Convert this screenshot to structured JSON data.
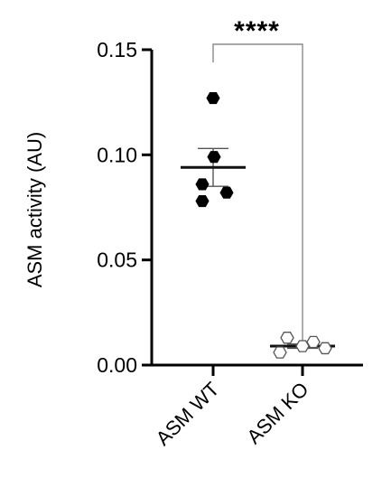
{
  "chart_data": {
    "type": "scatter",
    "ylabel": "ASM activity (AU)",
    "xlabel": "",
    "ylim": [
      0,
      0.15
    ],
    "yticks": [
      "0.00",
      "0.05",
      "0.10",
      "0.15"
    ],
    "categories": [
      "ASM WT",
      "ASM KO"
    ],
    "groups": [
      {
        "category": "ASM WT",
        "marker": "filled-hexagon",
        "color": "#000000",
        "values": [
          0.127,
          0.099,
          0.086,
          0.082,
          0.078
        ],
        "mean": 0.094,
        "sem": 0.009
      },
      {
        "category": "ASM KO",
        "marker": "open-hexagon",
        "color": "#ffffff",
        "values": [
          0.013,
          0.011,
          0.009,
          0.008,
          0.006
        ],
        "mean": 0.009,
        "sem": 0.001
      }
    ],
    "significance": {
      "label": "****",
      "between": [
        "ASM WT",
        "ASM KO"
      ]
    },
    "grid": false
  }
}
